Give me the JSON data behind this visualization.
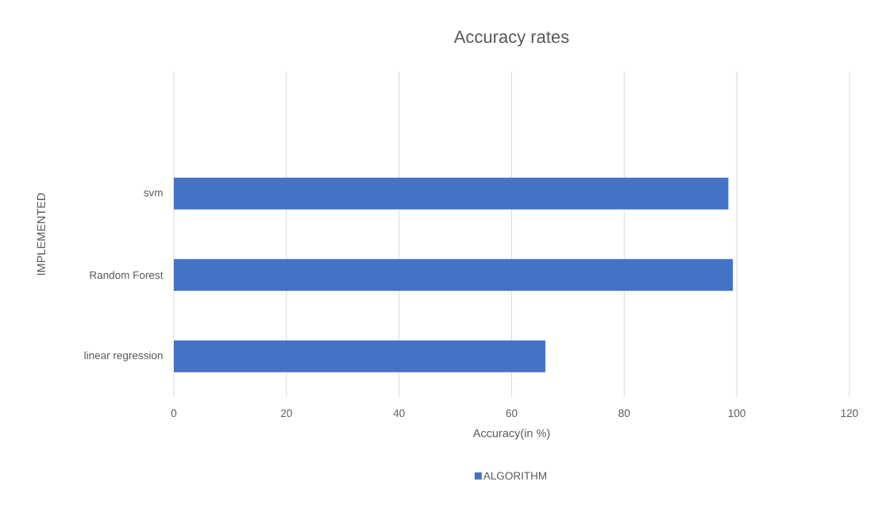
{
  "chart_data": {
    "type": "bar",
    "orientation": "horizontal",
    "title": "Accuracy rates",
    "xlabel": "Accuracy(in %)",
    "ylabel": "IMPLEMENTED",
    "categories": [
      "svm",
      "Random Forest",
      "linear regression"
    ],
    "series": [
      {
        "name": "ALGORITHM",
        "color": "#4472c4",
        "values": [
          98.5,
          99.3,
          66.0
        ]
      }
    ],
    "xlim": [
      0,
      120
    ],
    "xticks": [
      0,
      20,
      40,
      60,
      80,
      100,
      120
    ],
    "grid": "x",
    "legend": "bottom"
  }
}
